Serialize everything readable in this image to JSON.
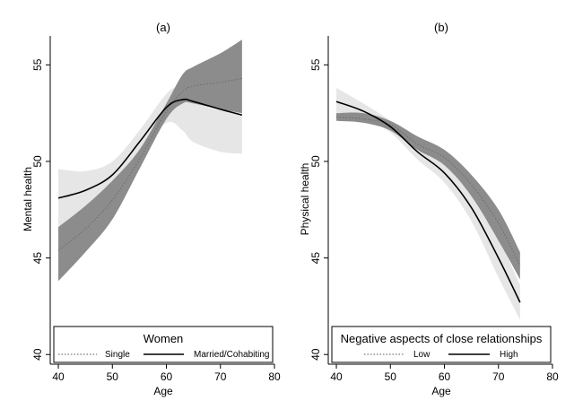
{
  "chart_data": [
    {
      "type": "line",
      "title": "(a)",
      "xlabel": "Age",
      "ylabel": "Mental health",
      "xlim": [
        38.5,
        80
      ],
      "ylim": [
        39.5,
        56.5
      ],
      "xticks": [
        40,
        50,
        60,
        70,
        80
      ],
      "yticks": [
        40,
        45,
        50,
        55
      ],
      "legend": {
        "title": "Women",
        "placement": "bottom"
      },
      "series": [
        {
          "name": "Single",
          "style": "dotted",
          "band_color": "#8c8c8c",
          "x": [
            40,
            45,
            50,
            55,
            60,
            63,
            65,
            70,
            74
          ],
          "y": [
            45.4,
            46.5,
            48.0,
            50.1,
            52.6,
            53.6,
            53.9,
            54.1,
            54.3
          ],
          "lower": [
            43.8,
            45.3,
            47.0,
            49.6,
            52.2,
            53.0,
            53.0,
            52.7,
            52.5
          ],
          "upper": [
            46.6,
            47.7,
            49.0,
            50.6,
            53.0,
            54.5,
            54.9,
            55.6,
            56.3
          ]
        },
        {
          "name": "Married/Cohabiting",
          "style": "solid",
          "band_color": "#e6e6e6",
          "x": [
            40,
            45,
            50,
            55,
            60,
            63,
            65,
            70,
            74
          ],
          "y": [
            48.1,
            48.5,
            49.3,
            51.0,
            52.8,
            53.2,
            53.1,
            52.7,
            52.4
          ],
          "lower": [
            46.5,
            47.5,
            48.6,
            50.4,
            52.0,
            51.6,
            51.0,
            50.5,
            50.4
          ],
          "upper": [
            49.6,
            49.5,
            50.0,
            51.6,
            53.5,
            54.0,
            54.1,
            54.4,
            54.5
          ]
        }
      ]
    },
    {
      "type": "line",
      "title": "(b)",
      "xlabel": "Age",
      "ylabel": "Physical health",
      "xlim": [
        38.5,
        80
      ],
      "ylim": [
        39.5,
        56.5
      ],
      "xticks": [
        40,
        50,
        60,
        70,
        80
      ],
      "yticks": [
        40,
        45,
        50,
        55
      ],
      "legend": {
        "title": "Negative aspects of close relationships",
        "placement": "bottom"
      },
      "series": [
        {
          "name": "Low",
          "style": "dotted",
          "band_color": "#8c8c8c",
          "x": [
            40,
            45,
            50,
            55,
            60,
            65,
            70,
            74
          ],
          "y": [
            52.3,
            52.2,
            51.9,
            50.9,
            50.2,
            48.8,
            46.8,
            44.6
          ],
          "lower": [
            52.1,
            52.0,
            51.6,
            50.6,
            49.8,
            48.2,
            45.9,
            43.9
          ],
          "upper": [
            52.5,
            52.5,
            52.1,
            51.3,
            50.6,
            49.3,
            47.5,
            45.3
          ]
        },
        {
          "name": "High",
          "style": "solid",
          "band_color": "#e6e6e6",
          "x": [
            40,
            45,
            50,
            55,
            60,
            65,
            70,
            74
          ],
          "y": [
            53.1,
            52.6,
            51.8,
            50.5,
            49.4,
            47.6,
            45.0,
            42.7
          ],
          "lower": [
            52.4,
            52.2,
            51.5,
            50.1,
            48.9,
            46.9,
            44.0,
            41.8
          ],
          "upper": [
            53.8,
            53.0,
            52.1,
            50.9,
            49.9,
            48.3,
            46.0,
            43.6
          ]
        }
      ]
    }
  ]
}
